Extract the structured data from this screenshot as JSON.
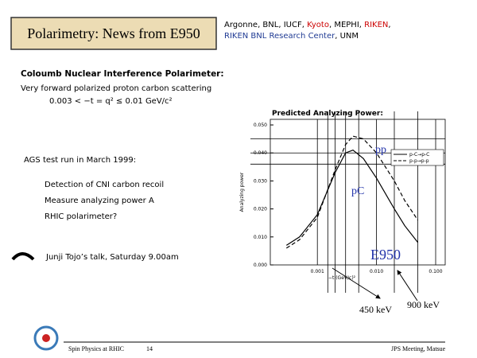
{
  "header": {
    "title": "Polarimetry: News from E950",
    "institutions_line1": [
      {
        "text": "Argonne, BNL, IUCF, ",
        "color": "#000000"
      },
      {
        "text": "Kyoto",
        "color": "#cc0000"
      },
      {
        "text": ", MEPHI, ",
        "color": "#000000"
      },
      {
        "text": "RIKEN",
        "color": "#cc0000"
      },
      {
        "text": ",",
        "color": "#000000"
      }
    ],
    "institutions_line2": [
      {
        "text": "RIKEN BNL Research Center",
        "color": "#1f3a93"
      },
      {
        "text": ", UNM",
        "color": "#000000"
      }
    ]
  },
  "body": {
    "cni_heading": "Coloumb Nuclear Interference Polarimeter:",
    "cni_text": "Very forward polarized proton carbon scattering",
    "cni_range": "0.003 < −t = q² ≤ 0.01 GeV/c²",
    "ags_heading": "AGS test run in March 1999:",
    "ags_items": [
      "Detection of CNI carbon recoil",
      "Measure analyzing power A",
      "RHIC polarimeter?"
    ],
    "talk": "Junji Tojo’s talk, Saturday 9.00am"
  },
  "chart_data": {
    "type": "line",
    "title": "Predicted Analyzing Power:",
    "x_label": "−t (GeV/c)²",
    "y_label": "Analyzing power",
    "log_x": true,
    "xlim": [
      0.00016,
      0.145
    ],
    "ylim": [
      0,
      0.052
    ],
    "xticks": [
      0.001,
      {
        "value": 0.01,
        "label": "0.010"
      },
      {
        "value": 0.1,
        "label": "0.100"
      }
    ],
    "yticks": [
      {
        "value": 0,
        "label": "0.000"
      },
      {
        "value": 0.01,
        "label": "0.010"
      },
      {
        "value": 0.02,
        "label": "0.020"
      },
      {
        "value": 0.03,
        "label": "0.030"
      },
      {
        "value": 0.04,
        "label": "0.040"
      },
      {
        "value": 0.05,
        "label": "0.050"
      }
    ],
    "reference_y": [
      0.045,
      0.04,
      0.036
    ],
    "reference_x": [
      0.0015,
      0.002,
      0.003,
      0.005,
      0.02,
      0.05
    ],
    "x": [
      0.0003,
      0.0005,
      0.001,
      0.002,
      0.003,
      0.004,
      0.006,
      0.01,
      0.02,
      0.03,
      0.05
    ],
    "series": [
      {
        "name": "p-C→p-C",
        "color": "#000000",
        "dash": false,
        "values": [
          0.007,
          0.01,
          0.018,
          0.033,
          0.04,
          0.041,
          0.038,
          0.031,
          0.02,
          0.014,
          0.008
        ]
      },
      {
        "name": "p-p→p-p",
        "color": "#000000",
        "dash": true,
        "values": [
          0.006,
          0.009,
          0.017,
          0.034,
          0.043,
          0.046,
          0.045,
          0.04,
          0.03,
          0.023,
          0.016
        ]
      }
    ],
    "legend": "upper right",
    "annotations": [
      "pp",
      "pC",
      "E950",
      "450 keV",
      "900 keV"
    ],
    "annotation_colors": [
      "#2233aa",
      "#2233aa",
      "#2233aa",
      "#000000",
      "#000000"
    ]
  },
  "footer": {
    "left": "Spin Physics at RHIC",
    "page": "14",
    "right": "JPS Meeting, Matsue"
  }
}
